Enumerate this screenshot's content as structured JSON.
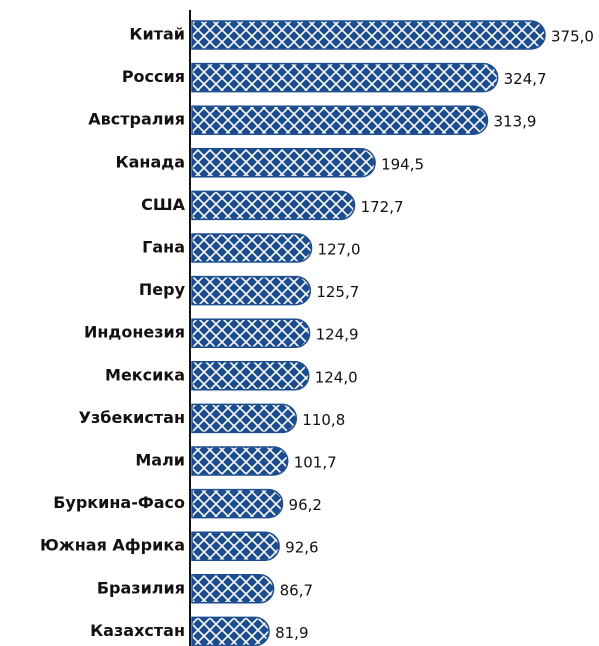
{
  "chart_data": {
    "type": "bar",
    "orientation": "horizontal",
    "color": "#1c4e8f",
    "categories": [
      "Китай",
      "Россия",
      "Австралия",
      "Канада",
      "США",
      "Гана",
      "Перу",
      "Индонезия",
      "Мексика",
      "Узбекистан",
      "Мали",
      "Буркина-Фасо",
      "Южная Африка",
      "Бразилия",
      "Казахстан"
    ],
    "values": [
      375.0,
      324.7,
      313.9,
      194.5,
      172.7,
      127.0,
      125.7,
      124.9,
      124.0,
      110.8,
      101.7,
      96.2,
      92.6,
      86.7,
      81.9
    ],
    "value_labels": [
      "375,0",
      "324,7",
      "313,9",
      "194,5",
      "172,7",
      "127,0",
      "125,7",
      "124,9",
      "124,0",
      "110,8",
      "101,7",
      "96,2",
      "92,6",
      "86,7",
      "81,9"
    ]
  }
}
